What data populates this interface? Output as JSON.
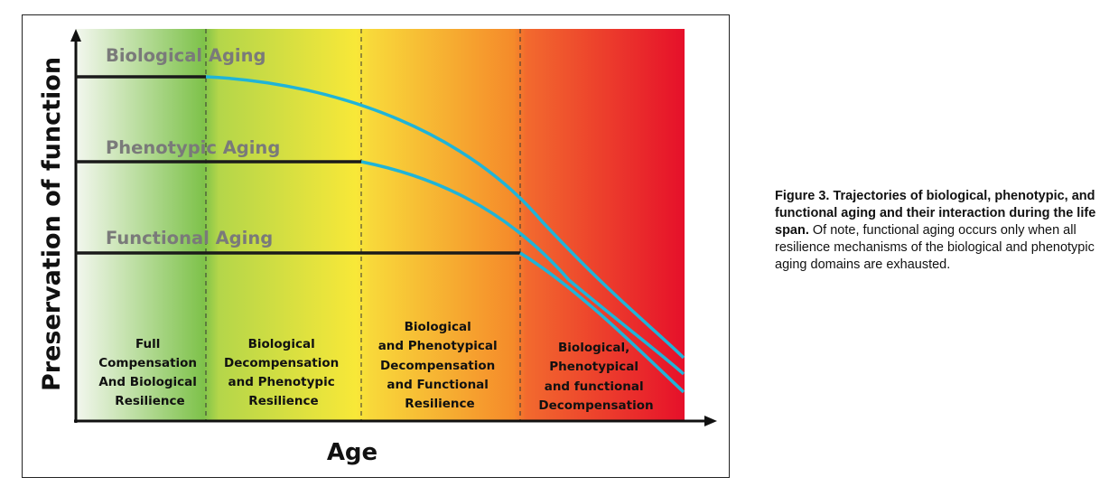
{
  "diagram": {
    "ylabel": "Preservation of function",
    "xlabel": "Age",
    "series": [
      {
        "name": "Biological Aging"
      },
      {
        "name": "Phenotypic Aging"
      },
      {
        "name": "Functional Aging"
      }
    ],
    "zones": [
      {
        "lines": [
          "Full",
          "Compensation",
          "And Biological",
          "Resilience"
        ]
      },
      {
        "lines": [
          "Biological",
          "Decompensation",
          "and Phenotypic",
          "Resilience"
        ]
      },
      {
        "lines": [
          "Biological",
          "and Phenotypical",
          "Decompensation",
          "and Functional",
          "Resilience"
        ]
      },
      {
        "lines": [
          "Biological,",
          "Phenotypical",
          "and functional",
          "Decompensation"
        ]
      }
    ],
    "colors": {
      "trajectory": "#20b4d8",
      "baseline": "#1a1a1a",
      "green": "#7ec24a",
      "yellow": "#f8e838",
      "orange": "#f58a2a",
      "red": "#e6102a"
    }
  },
  "caption": {
    "bold": "Figure 3. Trajectories of biological, phenotypic, and functional aging and their interaction during the life span.",
    "normal": " Of note, functional aging occurs only when all resilience mechanisms of the biological and phenotypic aging domains are exhausted."
  }
}
